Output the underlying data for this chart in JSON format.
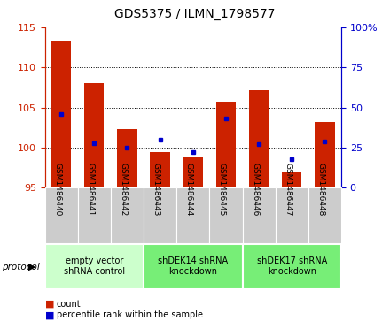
{
  "title": "GDS5375 / ILMN_1798577",
  "categories": [
    "GSM1486440",
    "GSM1486441",
    "GSM1486442",
    "GSM1486443",
    "GSM1486444",
    "GSM1486445",
    "GSM1486446",
    "GSM1486447",
    "GSM1486448"
  ],
  "count_values": [
    113.3,
    108.0,
    102.3,
    99.5,
    98.8,
    105.7,
    107.2,
    97.0,
    103.2
  ],
  "percentile_values": [
    46,
    28,
    25,
    30,
    22,
    43,
    27,
    18,
    29
  ],
  "ylim_left": [
    95,
    115
  ],
  "ylim_right": [
    0,
    100
  ],
  "yticks_left": [
    95,
    100,
    105,
    110,
    115
  ],
  "yticks_right": [
    0,
    25,
    50,
    75,
    100
  ],
  "yticklabels_right": [
    "0",
    "25",
    "50",
    "75",
    "100%"
  ],
  "bar_color": "#cc2200",
  "dot_color": "#0000cc",
  "bar_width": 0.6,
  "grid_color": "#000000",
  "tick_label_bg": "#cccccc",
  "protocol_label": "protocol",
  "legend_count_label": "count",
  "legend_pct_label": "percentile rank within the sample",
  "title_fontsize": 10,
  "tick_fontsize": 8,
  "proto_colors": [
    "#ccffcc",
    "#77ee77",
    "#77ee77"
  ],
  "proto_labels": [
    "empty vector\nshRNA control",
    "shDEK14 shRNA\nknockdown",
    "shDEK17 shRNA\nknockdown"
  ],
  "proto_starts": [
    0,
    3,
    6
  ],
  "proto_ends": [
    2,
    5,
    8
  ]
}
